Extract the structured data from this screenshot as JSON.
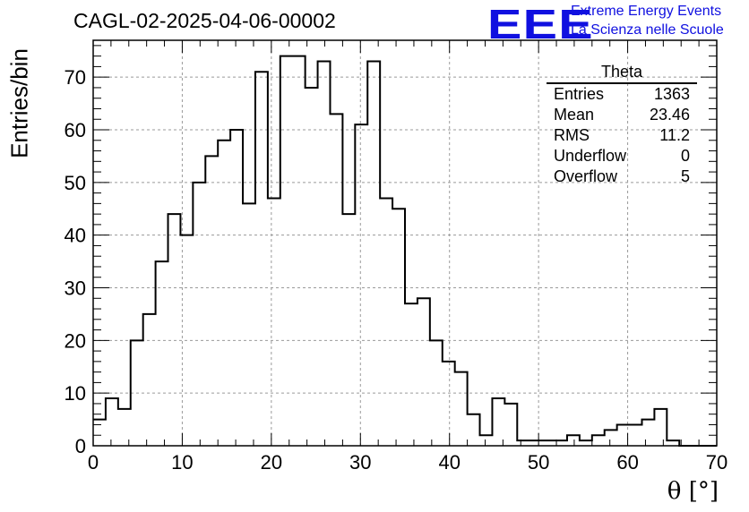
{
  "title": "CAGL-02-2025-04-06-00002",
  "logo": {
    "mark": "EEE",
    "line1": "Extreme Energy Events",
    "line2": "La Scienza nelle Scuole"
  },
  "stats": {
    "title": "Theta",
    "rows": [
      {
        "label": "Entries",
        "value": "1363"
      },
      {
        "label": "Mean",
        "value": "23.46"
      },
      {
        "label": "RMS",
        "value": "11.2"
      },
      {
        "label": "Underflow",
        "value": "0"
      },
      {
        "label": "Overflow",
        "value": "5"
      }
    ]
  },
  "chart_data": {
    "type": "histogram",
    "title": "CAGL-02-2025-04-06-00002",
    "xlabel": "θ [°]",
    "ylabel": "Entries/bin",
    "xlim": [
      0,
      70
    ],
    "ylim": [
      0,
      77
    ],
    "grid": true,
    "bin_width": 1.4,
    "x_start": 0,
    "x_ticks": [
      0,
      10,
      20,
      30,
      40,
      50,
      60,
      70
    ],
    "y_ticks": [
      0,
      10,
      20,
      30,
      40,
      50,
      60,
      70
    ],
    "values": [
      5,
      9,
      7,
      20,
      25,
      35,
      44,
      40,
      50,
      55,
      58,
      60,
      46,
      71,
      47,
      74,
      74,
      68,
      73,
      63,
      44,
      61,
      73,
      47,
      45,
      27,
      28,
      20,
      16,
      14,
      6,
      2,
      9,
      8,
      1,
      1,
      1,
      1,
      2,
      1,
      2,
      3,
      4,
      4,
      5,
      7,
      1,
      0,
      0,
      0
    ]
  }
}
